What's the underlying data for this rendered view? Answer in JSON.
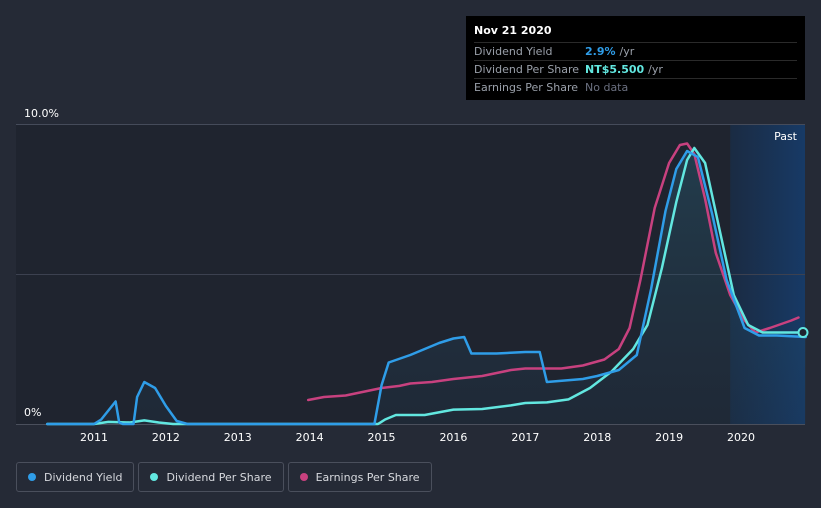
{
  "chart_data": {
    "type": "line",
    "title": "",
    "xlabel": "",
    "ylabel": "",
    "y_axis_labels": [
      "10.0%",
      "0%"
    ],
    "ylim": [
      0,
      10
    ],
    "x_ticks": [
      "2011",
      "2012",
      "2013",
      "2014",
      "2015",
      "2016",
      "2017",
      "2018",
      "2019",
      "2020"
    ],
    "x_range": [
      2010.25,
      2020.9
    ],
    "past_label": "Past",
    "past_region_start": 2019.85,
    "series": [
      {
        "name": "Dividend Yield",
        "color": "#2f9de8",
        "points": [
          [
            2010.35,
            0
          ],
          [
            2011.0,
            0
          ],
          [
            2011.1,
            0.15
          ],
          [
            2011.3,
            0.75
          ],
          [
            2011.35,
            0.05
          ],
          [
            2011.4,
            0
          ],
          [
            2011.55,
            0
          ],
          [
            2011.6,
            0.9
          ],
          [
            2011.7,
            1.4
          ],
          [
            2011.85,
            1.2
          ],
          [
            2012.0,
            0.6
          ],
          [
            2012.15,
            0.1
          ],
          [
            2012.3,
            0
          ],
          [
            2013.0,
            0
          ],
          [
            2014.0,
            0
          ],
          [
            2014.9,
            0
          ],
          [
            2015.0,
            1.3
          ],
          [
            2015.1,
            2.05
          ],
          [
            2015.4,
            2.3
          ],
          [
            2015.8,
            2.7
          ],
          [
            2016.0,
            2.85
          ],
          [
            2016.15,
            2.9
          ],
          [
            2016.25,
            2.35
          ],
          [
            2016.6,
            2.35
          ],
          [
            2017.0,
            2.4
          ],
          [
            2017.2,
            2.4
          ],
          [
            2017.3,
            1.4
          ],
          [
            2017.8,
            1.5
          ],
          [
            2018.0,
            1.6
          ],
          [
            2018.3,
            1.8
          ],
          [
            2018.55,
            2.3
          ],
          [
            2018.75,
            4.5
          ],
          [
            2018.95,
            7.1
          ],
          [
            2019.1,
            8.5
          ],
          [
            2019.25,
            9.1
          ],
          [
            2019.4,
            8.9
          ],
          [
            2019.6,
            7.0
          ],
          [
            2019.8,
            4.8
          ],
          [
            2020.05,
            3.2
          ],
          [
            2020.25,
            2.95
          ],
          [
            2020.5,
            2.95
          ],
          [
            2020.9,
            2.9
          ]
        ]
      },
      {
        "name": "Dividend Per Share",
        "color": "#62e7e0",
        "points": [
          [
            2010.35,
            0
          ],
          [
            2011.0,
            0
          ],
          [
            2011.2,
            0.07
          ],
          [
            2011.5,
            0.05
          ],
          [
            2011.7,
            0.12
          ],
          [
            2011.9,
            0.05
          ],
          [
            2012.1,
            0
          ],
          [
            2013.0,
            0
          ],
          [
            2014.0,
            0
          ],
          [
            2014.95,
            0
          ],
          [
            2015.05,
            0.15
          ],
          [
            2015.2,
            0.3
          ],
          [
            2015.6,
            0.3
          ],
          [
            2016.0,
            0.48
          ],
          [
            2016.4,
            0.5
          ],
          [
            2016.8,
            0.62
          ],
          [
            2017.0,
            0.7
          ],
          [
            2017.3,
            0.72
          ],
          [
            2017.6,
            0.82
          ],
          [
            2017.9,
            1.2
          ],
          [
            2018.2,
            1.75
          ],
          [
            2018.5,
            2.5
          ],
          [
            2018.7,
            3.3
          ],
          [
            2018.9,
            5.2
          ],
          [
            2019.1,
            7.4
          ],
          [
            2019.25,
            8.8
          ],
          [
            2019.35,
            9.2
          ],
          [
            2019.5,
            8.7
          ],
          [
            2019.7,
            6.5
          ],
          [
            2019.9,
            4.3
          ],
          [
            2020.1,
            3.3
          ],
          [
            2020.3,
            3.05
          ],
          [
            2020.6,
            3.05
          ],
          [
            2020.9,
            3.05
          ]
        ]
      },
      {
        "name": "Earnings Per Share",
        "color": "#c8417f",
        "points": [
          [
            2013.98,
            0.8
          ],
          [
            2014.2,
            0.9
          ],
          [
            2014.5,
            0.95
          ],
          [
            2014.8,
            1.1
          ],
          [
            2015.0,
            1.2
          ],
          [
            2015.25,
            1.27
          ],
          [
            2015.4,
            1.35
          ],
          [
            2015.7,
            1.4
          ],
          [
            2016.0,
            1.5
          ],
          [
            2016.4,
            1.6
          ],
          [
            2016.8,
            1.8
          ],
          [
            2017.0,
            1.85
          ],
          [
            2017.5,
            1.85
          ],
          [
            2017.8,
            1.95
          ],
          [
            2018.1,
            2.15
          ],
          [
            2018.3,
            2.5
          ],
          [
            2018.45,
            3.2
          ],
          [
            2018.6,
            4.8
          ],
          [
            2018.8,
            7.2
          ],
          [
            2019.0,
            8.7
          ],
          [
            2019.15,
            9.3
          ],
          [
            2019.25,
            9.35
          ],
          [
            2019.35,
            9.0
          ],
          [
            2019.5,
            7.5
          ],
          [
            2019.65,
            5.7
          ],
          [
            2019.85,
            4.3
          ],
          [
            2020.05,
            3.45
          ],
          [
            2020.2,
            3.05
          ],
          [
            2020.4,
            3.2
          ],
          [
            2020.7,
            3.45
          ],
          [
            2020.8,
            3.55
          ]
        ]
      }
    ]
  },
  "tooltip": {
    "date": "Nov 21 2020",
    "rows": [
      {
        "label": "Dividend Yield",
        "value": "2.9%",
        "unit": "/yr"
      },
      {
        "label": "Dividend Per Share",
        "value": "NT$5.500",
        "unit": "/yr"
      },
      {
        "label": "Earnings Per Share",
        "value": "No data",
        "unit": ""
      }
    ]
  },
  "legend": [
    {
      "label": "Dividend Yield",
      "color": "#2f9de8"
    },
    {
      "label": "Dividend Per Share",
      "color": "#62e7e0"
    },
    {
      "label": "Earnings Per Share",
      "color": "#c8417f"
    }
  ],
  "colors": {
    "background": "#252a36",
    "plot_background": "#1f242f",
    "past_region": "#1a3150",
    "gridline": "#3c4150"
  }
}
